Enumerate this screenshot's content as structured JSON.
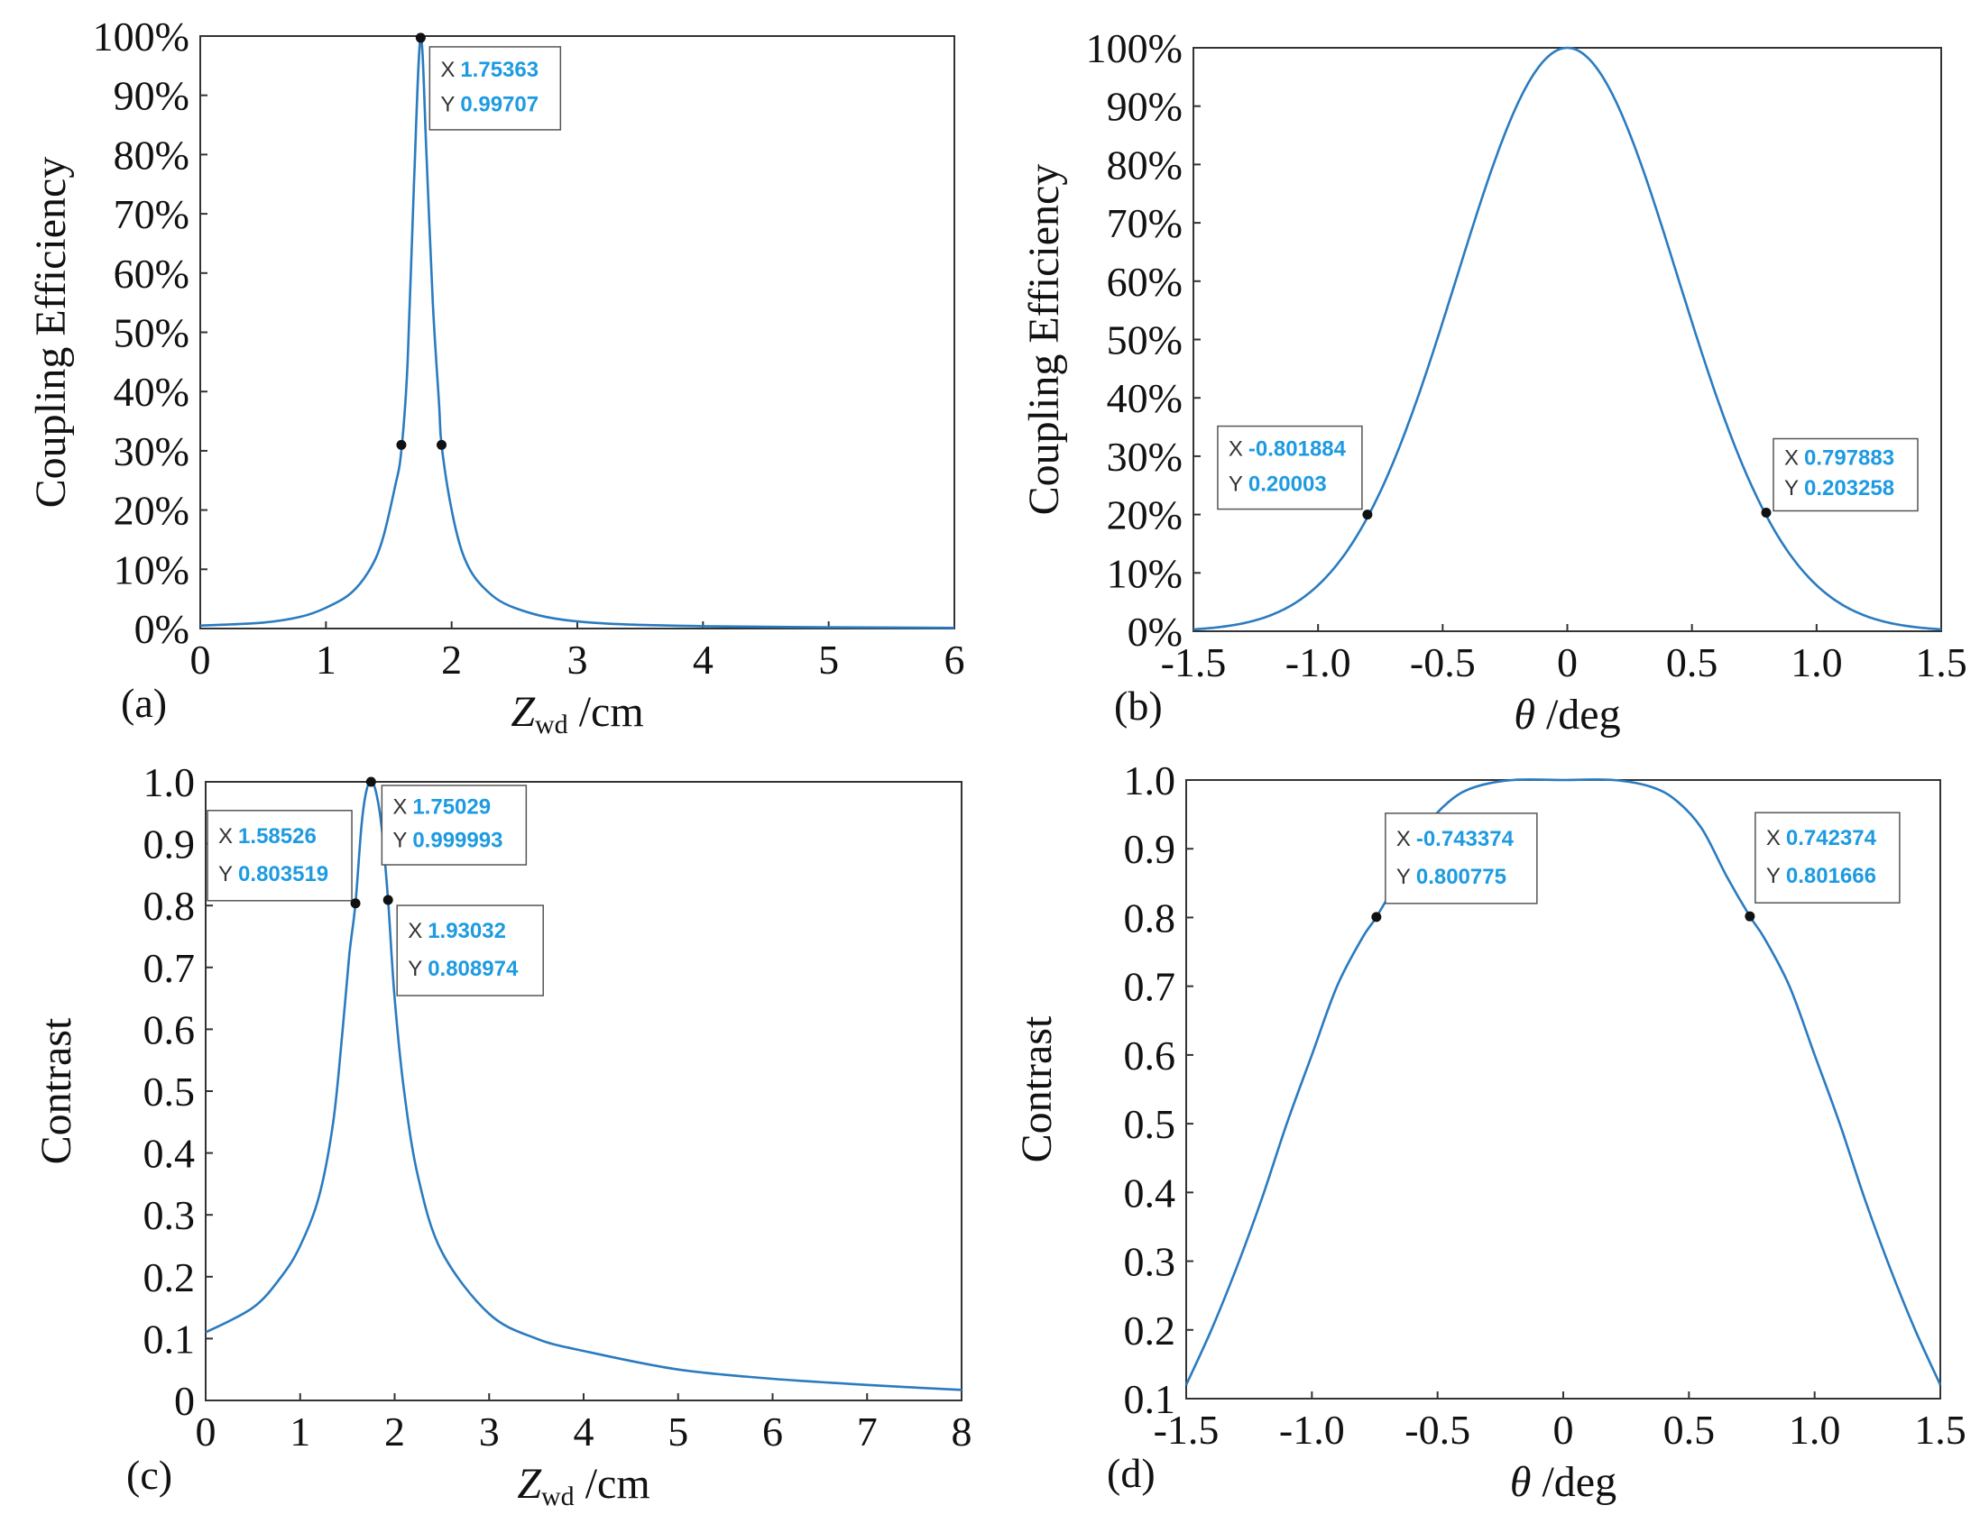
{
  "colors": {
    "curve": "#2a7bc0",
    "tip_value": "#1e9be0",
    "frame": "#333333"
  },
  "chart_data": [
    {
      "id": "a",
      "type": "line",
      "panel_label": "(a)",
      "ylabel": "Coupling Efficiency",
      "xlabel_symbol": "Z",
      "xlabel_sub": "wd",
      "xlabel_unit": "/cm",
      "xlim": [
        0,
        6
      ],
      "ylim": [
        0,
        1
      ],
      "xticks": [
        0,
        1,
        2,
        3,
        4,
        5,
        6
      ],
      "xtick_labels": [
        "0",
        "1",
        "2",
        "3",
        "4",
        "5",
        "6"
      ],
      "yticks": [
        0,
        0.1,
        0.2,
        0.3,
        0.4,
        0.5,
        0.6,
        0.7,
        0.8,
        0.9,
        1.0
      ],
      "ytick_labels": [
        "0%",
        "10%",
        "20%",
        "30%",
        "40%",
        "50%",
        "60%",
        "70%",
        "80%",
        "90%",
        "100%"
      ],
      "series": [
        {
          "name": "coupling efficiency vs Zwd",
          "points": [
            [
              0,
              0.005
            ],
            [
              0.5,
              0.01
            ],
            [
              0.8,
              0.02
            ],
            [
              1.0,
              0.035
            ],
            [
              1.2,
              0.06
            ],
            [
              1.35,
              0.1
            ],
            [
              1.45,
              0.15
            ],
            [
              1.55,
              0.24
            ],
            [
              1.6,
              0.3
            ],
            [
              1.65,
              0.45
            ],
            [
              1.7,
              0.75
            ],
            [
              1.75363,
              0.99707
            ],
            [
              1.8,
              0.8
            ],
            [
              1.85,
              0.55
            ],
            [
              1.9,
              0.38
            ],
            [
              1.92,
              0.31
            ],
            [
              2.0,
              0.2
            ],
            [
              2.1,
              0.12
            ],
            [
              2.25,
              0.07
            ],
            [
              2.5,
              0.035
            ],
            [
              3.0,
              0.012
            ],
            [
              4.0,
              0.004
            ],
            [
              6.0,
              0.001
            ]
          ]
        }
      ],
      "markers": [
        {
          "x": 1.75363,
          "y": 0.99707,
          "tooltip": {
            "x_key": "X",
            "x_val": "1.75363",
            "y_key": "Y",
            "y_val": "0.99707"
          }
        },
        {
          "x": 1.6,
          "y": 0.31,
          "tooltip": null
        },
        {
          "x": 1.92,
          "y": 0.31,
          "tooltip": null
        }
      ]
    },
    {
      "id": "b",
      "type": "line",
      "panel_label": "(b)",
      "ylabel": "Coupling Efficiency",
      "xlabel_symbol": "θ",
      "xlabel_sub": "",
      "xlabel_unit": "/deg",
      "xlim": [
        -1.5,
        1.5
      ],
      "ylim": [
        0,
        1
      ],
      "xticks": [
        -1.5,
        -1.0,
        -0.5,
        0,
        0.5,
        1.0,
        1.5
      ],
      "xtick_labels": [
        "-1.5",
        "-1.0",
        "-0.5",
        "0",
        "0.5",
        "1.0",
        "1.5"
      ],
      "yticks": [
        0,
        0.1,
        0.2,
        0.3,
        0.4,
        0.5,
        0.6,
        0.7,
        0.8,
        0.9,
        1.0
      ],
      "ytick_labels": [
        "0%",
        "10%",
        "20%",
        "30%",
        "40%",
        "50%",
        "60%",
        "70%",
        "80%",
        "90%",
        "100%"
      ],
      "series": [
        {
          "name": "coupling efficiency vs theta",
          "gaussian": {
            "amplitude": 1.0,
            "scale": 0.4436
          }
        }
      ],
      "markers": [
        {
          "x": -0.801884,
          "y": 0.20003,
          "tooltip": {
            "x_key": "X",
            "x_val": "-0.801884",
            "y_key": "Y",
            "y_val": "0.20003"
          }
        },
        {
          "x": 0.797883,
          "y": 0.203258,
          "tooltip": {
            "x_key": "X",
            "x_val": "0.797883",
            "y_key": "Y",
            "y_val": "0.203258"
          }
        }
      ]
    },
    {
      "id": "c",
      "type": "line",
      "panel_label": "(c)",
      "ylabel": "Contrast",
      "xlabel_symbol": "Z",
      "xlabel_sub": "wd",
      "xlabel_unit": "/cm",
      "xlim": [
        0,
        8
      ],
      "ylim": [
        0,
        1
      ],
      "xticks": [
        0,
        1,
        2,
        3,
        4,
        5,
        6,
        7,
        8
      ],
      "xtick_labels": [
        "0",
        "1",
        "2",
        "3",
        "4",
        "5",
        "6",
        "7",
        "8"
      ],
      "yticks": [
        0,
        0.1,
        0.2,
        0.3,
        0.4,
        0.5,
        0.6,
        0.7,
        0.8,
        0.9,
        1.0
      ],
      "ytick_labels": [
        "0",
        "0.1",
        "0.2",
        "0.3",
        "0.4",
        "0.5",
        "0.6",
        "0.7",
        "0.8",
        "0.9",
        "1.0"
      ],
      "series": [
        {
          "name": "contrast vs Zwd",
          "points": [
            [
              0,
              0.11
            ],
            [
              0.5,
              0.15
            ],
            [
              0.8,
              0.2
            ],
            [
              1.0,
              0.25
            ],
            [
              1.2,
              0.33
            ],
            [
              1.35,
              0.45
            ],
            [
              1.45,
              0.6
            ],
            [
              1.52,
              0.72
            ],
            [
              1.58526,
              0.803519
            ],
            [
              1.65,
              0.93
            ],
            [
              1.7,
              0.985
            ],
            [
              1.75029,
              0.999993
            ],
            [
              1.8,
              0.985
            ],
            [
              1.86,
              0.93
            ],
            [
              1.93032,
              0.808974
            ],
            [
              2.0,
              0.65
            ],
            [
              2.1,
              0.5
            ],
            [
              2.25,
              0.36
            ],
            [
              2.5,
              0.24
            ],
            [
              3.0,
              0.14
            ],
            [
              3.5,
              0.1
            ],
            [
              4.0,
              0.08
            ],
            [
              5.0,
              0.05
            ],
            [
              6.0,
              0.035
            ],
            [
              7.0,
              0.025
            ],
            [
              8.0,
              0.017
            ]
          ]
        }
      ],
      "markers": [
        {
          "x": 1.58526,
          "y": 0.803519,
          "tooltip": {
            "x_key": "X",
            "x_val": "1.58526",
            "y_key": "Y",
            "y_val": "0.803519"
          }
        },
        {
          "x": 1.75029,
          "y": 0.999993,
          "tooltip": {
            "x_key": "X",
            "x_val": "1.75029",
            "y_key": "Y",
            "y_val": "0.999993"
          }
        },
        {
          "x": 1.93032,
          "y": 0.808974,
          "tooltip": {
            "x_key": "X",
            "x_val": "1.93032",
            "y_key": "Y",
            "y_val": "0.808974"
          }
        }
      ]
    },
    {
      "id": "d",
      "type": "line",
      "panel_label": "(d)",
      "ylabel": "Contrast",
      "xlabel_symbol": "θ",
      "xlabel_sub": "",
      "xlabel_unit": "/deg",
      "xlim": [
        -1.5,
        1.5
      ],
      "ylim": [
        0.1,
        1.0
      ],
      "xticks": [
        -1.5,
        -1.0,
        -0.5,
        0,
        0.5,
        1.0,
        1.5
      ],
      "xtick_labels": [
        "-1.5",
        "-1.0",
        "-0.5",
        "0",
        "0.5",
        "1.0",
        "1.5"
      ],
      "yticks": [
        0.1,
        0.2,
        0.3,
        0.4,
        0.5,
        0.6,
        0.7,
        0.8,
        0.9,
        1.0
      ],
      "ytick_labels": [
        "0.1",
        "0.2",
        "0.3",
        "0.4",
        "0.5",
        "0.6",
        "0.7",
        "0.8",
        "0.9",
        "1.0"
      ],
      "series": [
        {
          "name": "contrast vs theta",
          "points": [
            [
              -1.5,
              0.12
            ],
            [
              -1.4,
              0.2
            ],
            [
              -1.3,
              0.29
            ],
            [
              -1.2,
              0.39
            ],
            [
              -1.1,
              0.5
            ],
            [
              -1.0,
              0.6
            ],
            [
              -0.9,
              0.7
            ],
            [
              -0.8,
              0.77
            ],
            [
              -0.743374,
              0.800775
            ],
            [
              -0.65,
              0.86
            ],
            [
              -0.55,
              0.93
            ],
            [
              -0.45,
              0.97
            ],
            [
              -0.35,
              0.99
            ],
            [
              -0.2,
              1.0
            ],
            [
              0,
              1.0
            ],
            [
              0.2,
              1.0
            ],
            [
              0.35,
              0.99
            ],
            [
              0.45,
              0.97
            ],
            [
              0.55,
              0.93
            ],
            [
              0.65,
              0.86
            ],
            [
              0.742374,
              0.801666
            ],
            [
              0.8,
              0.77
            ],
            [
              0.9,
              0.7
            ],
            [
              1.0,
              0.6
            ],
            [
              1.1,
              0.5
            ],
            [
              1.2,
              0.39
            ],
            [
              1.3,
              0.29
            ],
            [
              1.4,
              0.2
            ],
            [
              1.5,
              0.12
            ]
          ]
        }
      ],
      "markers": [
        {
          "x": -0.743374,
          "y": 0.800775,
          "tooltip": {
            "x_key": "X",
            "x_val": "-0.743374",
            "y_key": "Y",
            "y_val": "0.800775"
          }
        },
        {
          "x": 0.742374,
          "y": 0.801666,
          "tooltip": {
            "x_key": "X",
            "x_val": "0.742374",
            "y_key": "Y",
            "y_val": "0.801666"
          }
        }
      ]
    }
  ]
}
